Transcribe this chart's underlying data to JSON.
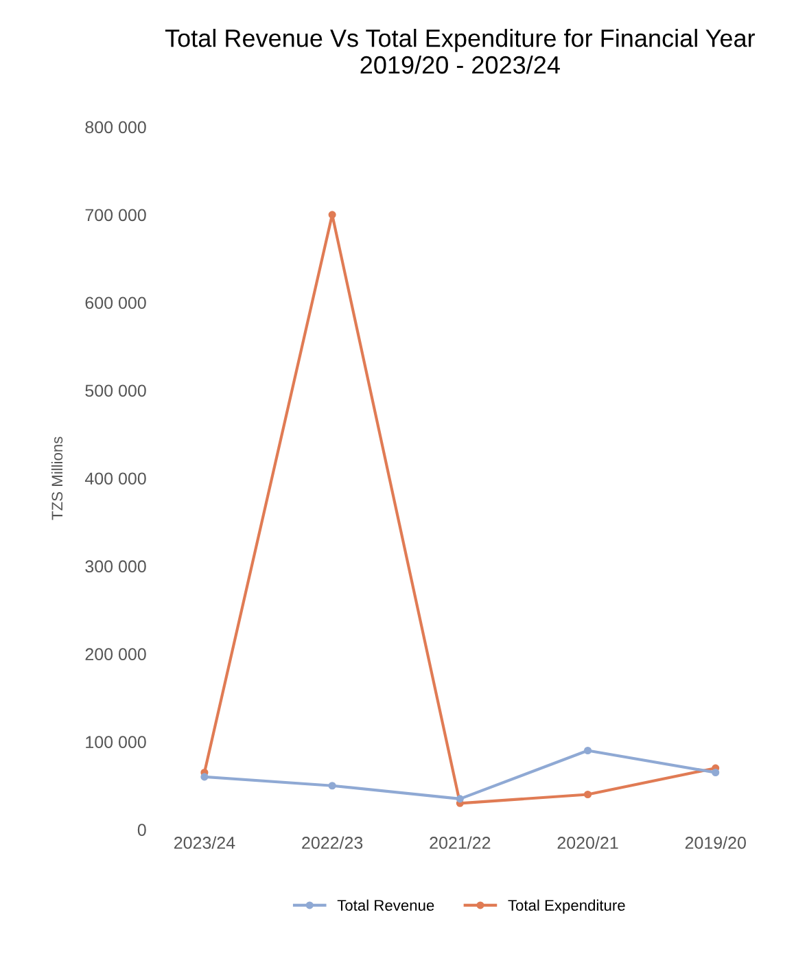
{
  "chart_data": {
    "type": "line",
    "title": "Total Revenue Vs Total Expenditure for Financial Year\n2019/20 - 2023/24",
    "ylabel": "TZS Millions",
    "categories": [
      "2023/24",
      "2022/23",
      "2021/22",
      "2020/21",
      "2019/20"
    ],
    "series": [
      {
        "name": "Total Revenue",
        "color": "#8fa9d4",
        "values": [
          60000,
          50000,
          35000,
          90000,
          65000
        ]
      },
      {
        "name": "Total Expenditure",
        "color": "#e07b54",
        "values": [
          65000,
          700000,
          30000,
          40000,
          70000
        ]
      }
    ],
    "ylim": [
      0,
      800000
    ],
    "yticks": [
      {
        "value": 0,
        "label": "0"
      },
      {
        "value": 100000,
        "label": "100 000"
      },
      {
        "value": 200000,
        "label": "200 000"
      },
      {
        "value": 300000,
        "label": "300 000"
      },
      {
        "value": 400000,
        "label": "400 000"
      },
      {
        "value": 500000,
        "label": "500 000"
      },
      {
        "value": 600000,
        "label": "600 000"
      },
      {
        "value": 700000,
        "label": "700 000"
      },
      {
        "value": 800000,
        "label": "800 000"
      }
    ],
    "grid": false,
    "legend": "bottom",
    "marker": "circle",
    "line_style": "solid"
  }
}
